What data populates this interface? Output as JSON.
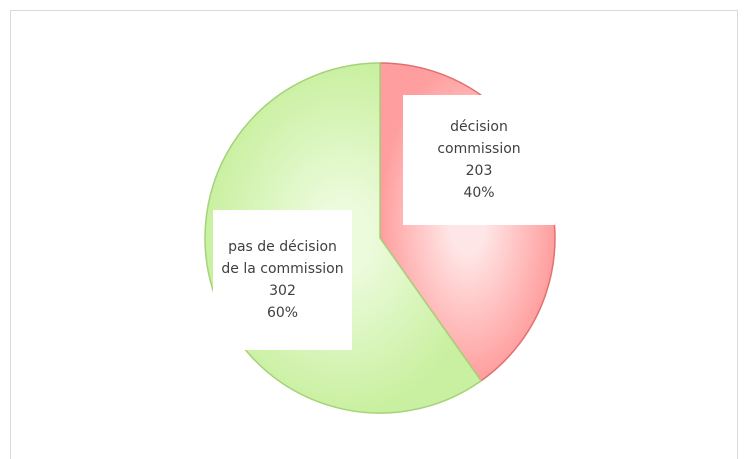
{
  "chart_data": {
    "type": "pie",
    "categories": [
      "décision commission",
      "pas de décision de la commission"
    ],
    "values": [
      203,
      302
    ],
    "percent_labels": [
      "40%",
      "60%"
    ],
    "colors": [
      "#ff9e9e",
      "#c9f0a0"
    ],
    "edge_colors": [
      "#e27070",
      "#a6d27a"
    ]
  }
}
